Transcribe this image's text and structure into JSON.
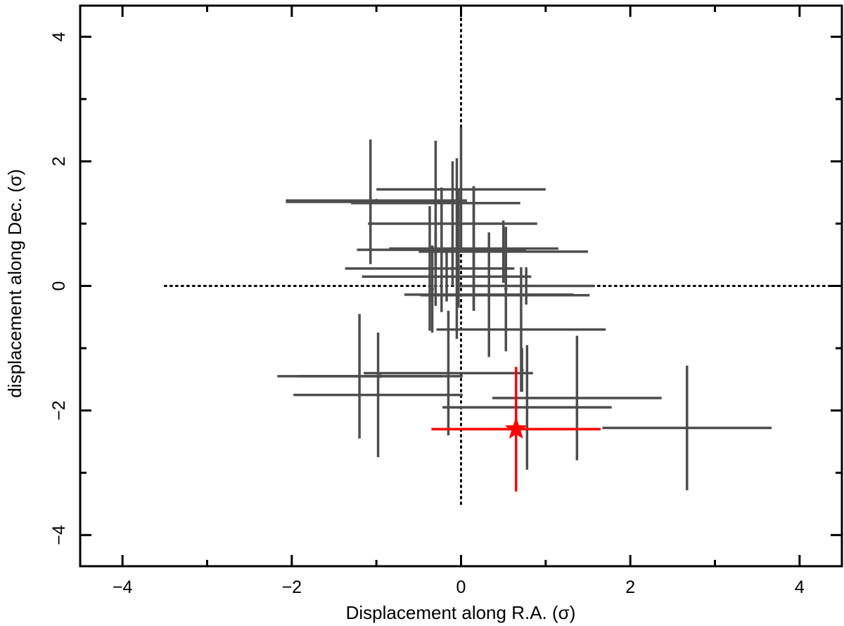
{
  "chart_data": {
    "type": "scatter",
    "title": "",
    "xlabel": "Displacement along R.A. (σ)",
    "ylabel": "displacement along Dec. (σ)",
    "xlim": [
      -4.5,
      4.5
    ],
    "ylim": [
      -4.5,
      4.5
    ],
    "xticks_major": [
      -4,
      -2,
      0,
      2,
      4
    ],
    "yticks_major": [
      -4,
      -2,
      0,
      2,
      4
    ],
    "xtick_labels": [
      "−4",
      "−2",
      "0",
      "2",
      "4"
    ],
    "ytick_labels": [
      "−4",
      "−2",
      "0",
      "2",
      "4"
    ],
    "minor_tick_step": 1,
    "grid": false,
    "legend": "none",
    "reference_lines": [
      {
        "orientation": "horizontal",
        "at": 0,
        "from": -3.5,
        "to": 4.5,
        "style": "dotted"
      },
      {
        "orientation": "vertical",
        "at": 0,
        "from": -3.5,
        "to": 4.5,
        "style": "dotted"
      }
    ],
    "series": [
      {
        "color": "#4d4d4d",
        "marker": "cross",
        "points": [
          {
            "x": -1.07,
            "y": 1.35,
            "xerr": 1.0,
            "yerr": 1.0
          },
          {
            "x": 0.0,
            "y": 1.55,
            "xerr": 1.0,
            "yerr": 1.0
          },
          {
            "x": -0.3,
            "y": 1.33,
            "xerr": 1.0,
            "yerr": 1.0
          },
          {
            "x": -1.0,
            "y": 1.37,
            "xerr": 1.07,
            "yerr": 0.0
          },
          {
            "x": -0.1,
            "y": 1.0,
            "xerr": 1.0,
            "yerr": 1.0
          },
          {
            "x": 0.15,
            "y": 0.6,
            "xerr": 1.0,
            "yerr": 1.0
          },
          {
            "x": -0.23,
            "y": 0.58,
            "xerr": 1.0,
            "yerr": 1.0
          },
          {
            "x": 0.5,
            "y": 0.55,
            "xerr": 1.0,
            "yerr": 0.5
          },
          {
            "x": -0.37,
            "y": 0.28,
            "xerr": 1.0,
            "yerr": 1.0
          },
          {
            "x": -0.17,
            "y": 0.15,
            "xerr": 1.0,
            "yerr": 0.4
          },
          {
            "x": -0.3,
            "y": 0.28,
            "xerr": 0.6,
            "yerr": 0.6
          },
          {
            "x": -0.05,
            "y": 0.6,
            "xerr": 0.0,
            "yerr": 1.45
          },
          {
            "x": -0.03,
            "y": 0.6,
            "xerr": 0.0,
            "yerr": 0.95
          },
          {
            "x": 0.15,
            "y": 0.6,
            "xerr": 0.0,
            "yerr": 1.0
          },
          {
            "x": 0.33,
            "y": -0.14,
            "xerr": 1.0,
            "yerr": 1.0
          },
          {
            "x": 0.52,
            "y": -0.15,
            "xerr": 1.0,
            "yerr": 0.0
          },
          {
            "x": 0.77,
            "y": 0.0,
            "xerr": 0.8,
            "yerr": 0.3
          },
          {
            "x": 0.71,
            "y": -0.7,
            "xerr": 1.0,
            "yerr": 1.0
          },
          {
            "x": 0.53,
            "y": -0.05,
            "xerr": 0.0,
            "yerr": 1.0
          },
          {
            "x": -0.34,
            "y": -0.05,
            "xerr": 0.0,
            "yerr": 0.7
          },
          {
            "x": -1.2,
            "y": -1.45,
            "xerr": 0.97,
            "yerr": 1.0
          },
          {
            "x": -0.95,
            "y": -1.45,
            "xerr": 0.97,
            "yerr": 0.0
          },
          {
            "x": -0.15,
            "y": -1.4,
            "xerr": 1.0,
            "yerr": 1.0
          },
          {
            "x": -0.98,
            "y": -1.75,
            "xerr": 1.0,
            "yerr": 1.0
          },
          {
            "x": 1.37,
            "y": -1.8,
            "xerr": 1.0,
            "yerr": 1.0
          },
          {
            "x": 0.78,
            "y": -1.95,
            "xerr": 1.0,
            "yerr": 1.0
          },
          {
            "x": 0.72,
            "y": -1.35,
            "xerr": 0.0,
            "yerr": 0.35
          },
          {
            "x": 2.67,
            "y": -2.28,
            "xerr": 1.0,
            "yerr": 1.0
          }
        ]
      },
      {
        "color": "#ff0000",
        "marker": "star",
        "points": [
          {
            "x": 0.65,
            "y": -2.3,
            "xerr": 1.0,
            "yerr": 1.0
          }
        ]
      }
    ]
  }
}
